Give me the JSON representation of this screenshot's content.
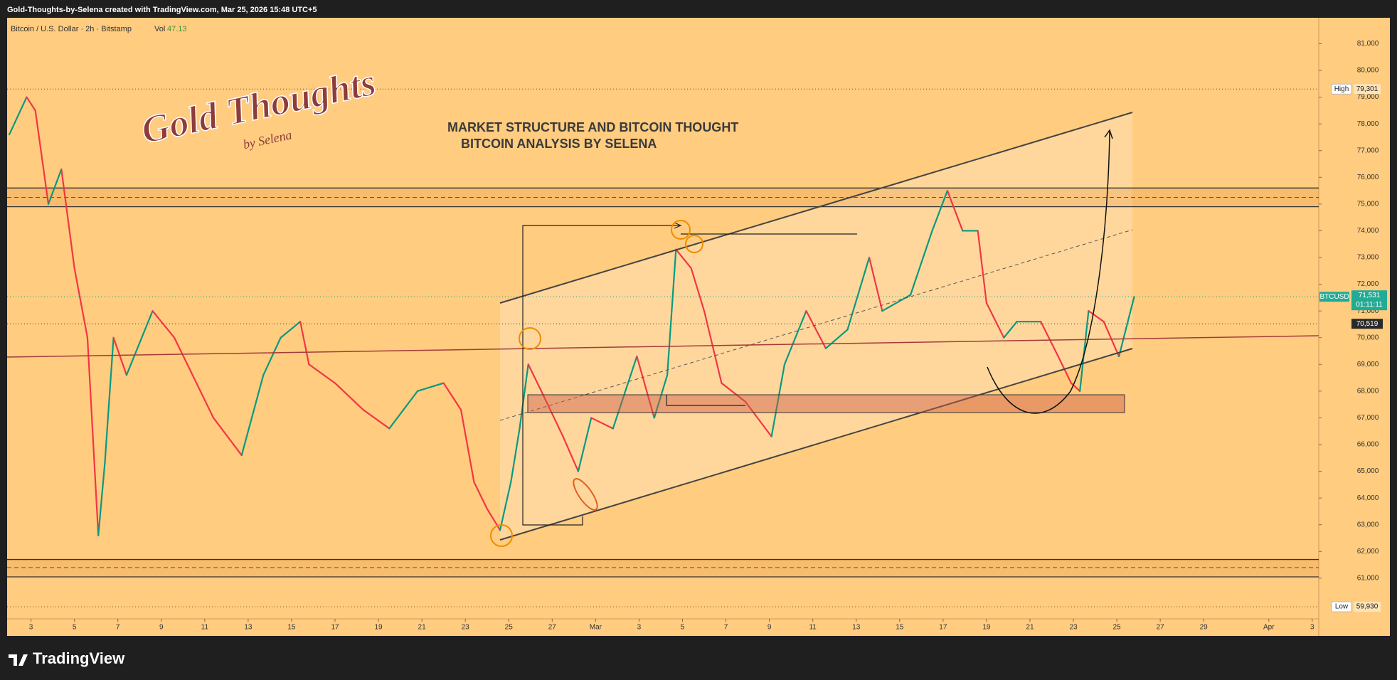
{
  "header": "Gold-Thoughts-by-Selena created with TradingView.com, Mar 25, 2026 15:48 UTC+5",
  "footer": {
    "brand": "TradingView"
  },
  "chart_data": {
    "type": "line",
    "symbol": "Bitcoin / U.S. Dollar · 2h · Bitstamp",
    "volume_label": "Vol",
    "volume": 47.13,
    "title": "MARKET STRUCTURE AND BITCOIN THOUGHT",
    "subtitle": "BITCOIN ANALYSIS BY SELENA",
    "logo": {
      "title": "Gold Thoughts",
      "byline": "by Selena"
    },
    "series": [
      {
        "name": "BTCUSD",
        "color_up": "#089981",
        "color_down": "#f23645",
        "x": [
          2.0,
          2.8,
          3.2,
          3.8,
          4.4,
          5.0,
          5.6,
          6.1,
          6.4,
          6.8,
          7.4,
          8.6,
          9.6,
          10.2,
          11.4,
          12.7,
          13.7,
          14.5,
          15.4,
          15.8,
          17.0,
          18.3,
          19.5,
          20.8,
          22.0,
          22.8,
          23.4,
          24.0,
          24.6,
          25.1,
          25.5,
          25.9,
          26.5,
          27.5,
          28.2,
          28.8,
          29.8,
          30.9,
          31.7,
          32.3,
          32.7,
          33.4,
          34.0,
          34.8,
          35.9,
          37.1,
          37.7,
          38.7,
          39.6,
          40.6,
          41.6,
          42.2,
          43.5,
          44.5,
          45.2,
          45.9,
          46.6,
          47.0,
          47.8,
          48.4,
          49.5,
          50.3,
          50.9,
          51.3,
          51.7,
          52.4,
          53.1,
          53.8
        ],
        "values": [
          77600,
          79000,
          78500,
          75000,
          76300,
          72600,
          70000,
          62600,
          65300,
          70000,
          68600,
          71000,
          70000,
          69000,
          67000,
          65600,
          68600,
          70000,
          70600,
          69000,
          68300,
          67300,
          66600,
          68000,
          68300,
          67300,
          64600,
          63600,
          62800,
          64600,
          66600,
          69000,
          68000,
          66300,
          65000,
          67000,
          66600,
          69300,
          67000,
          68600,
          73300,
          72600,
          71000,
          68300,
          67600,
          66300,
          69000,
          71000,
          69600,
          70300,
          73000,
          71000,
          71600,
          74000,
          75500,
          74000,
          74000,
          71300,
          70000,
          70600,
          70600,
          69300,
          68300,
          68000,
          71000,
          70600,
          69300,
          71531
        ]
      }
    ],
    "last_price": {
      "name": "BTCUSD",
      "value": 71531,
      "value_label": "71,531",
      "countdown": "01:11:11",
      "color": "#22ab94"
    },
    "level": {
      "value": 70519,
      "value_label": "70,519"
    },
    "markers": {
      "names": [
        "High",
        "Low"
      ],
      "values": [
        79301,
        59930
      ],
      "value_labels": [
        "79,301",
        "59,930"
      ]
    },
    "zones": [
      {
        "top": 75600,
        "mid": 75250,
        "bottom": 74900
      },
      {
        "top": 61700,
        "mid": 61400,
        "bottom": 61050
      }
    ],
    "xlim": [
      1.9,
      62.3
    ],
    "xticks": [
      3,
      5,
      7,
      9,
      11,
      13,
      15,
      17,
      19,
      21,
      23,
      25,
      27,
      {
        "value": 29,
        "label": "Mar"
      },
      {
        "value": 31,
        "label": "3"
      },
      {
        "value": 33,
        "label": "5"
      },
      {
        "value": 35,
        "label": "7"
      },
      {
        "value": 37,
        "label": "9"
      },
      {
        "value": 39,
        "label": "11"
      },
      {
        "value": 41,
        "label": "13"
      },
      {
        "value": 43,
        "label": "15"
      },
      {
        "value": 45,
        "label": "17"
      },
      {
        "value": 47,
        "label": "19"
      },
      {
        "value": 49,
        "label": "21"
      },
      {
        "value": 51,
        "label": "23"
      },
      {
        "value": 53,
        "label": "25"
      },
      {
        "value": 55,
        "label": "27"
      },
      {
        "value": 57,
        "label": "29"
      },
      {
        "value": 60,
        "label": "Apr"
      },
      {
        "value": 62,
        "label": "3"
      }
    ],
    "ylim": [
      58840,
      81970
    ],
    "yticks": [
      {
        "value": 61000,
        "label": "61,000"
      },
      {
        "value": 62000,
        "label": "62,000"
      },
      {
        "value": 63000,
        "label": "63,000"
      },
      {
        "value": 64000,
        "label": "64,000"
      },
      {
        "value": 65000,
        "label": "65,000"
      },
      {
        "value": 66000,
        "label": "66,000"
      },
      {
        "value": 67000,
        "label": "67,000"
      },
      {
        "value": 68000,
        "label": "68,000"
      },
      {
        "value": 69000,
        "label": "69,000"
      },
      {
        "value": 70000,
        "label": "70,000"
      },
      {
        "value": 71000,
        "label": "71,000"
      },
      {
        "value": 72000,
        "label": "72,000"
      },
      {
        "value": 73000,
        "label": "73,000"
      },
      {
        "value": 74000,
        "label": "74,000"
      },
      {
        "value": 75000,
        "label": "75,000"
      },
      {
        "value": 76000,
        "label": "76,000"
      },
      {
        "value": 77000,
        "label": "77,000"
      },
      {
        "value": 78000,
        "label": "78,000"
      },
      {
        "value": 79000,
        "label": "79,000"
      },
      {
        "value": 80000,
        "label": "80,000"
      },
      {
        "value": 81000,
        "label": "81,000"
      }
    ],
    "grid": false
  }
}
